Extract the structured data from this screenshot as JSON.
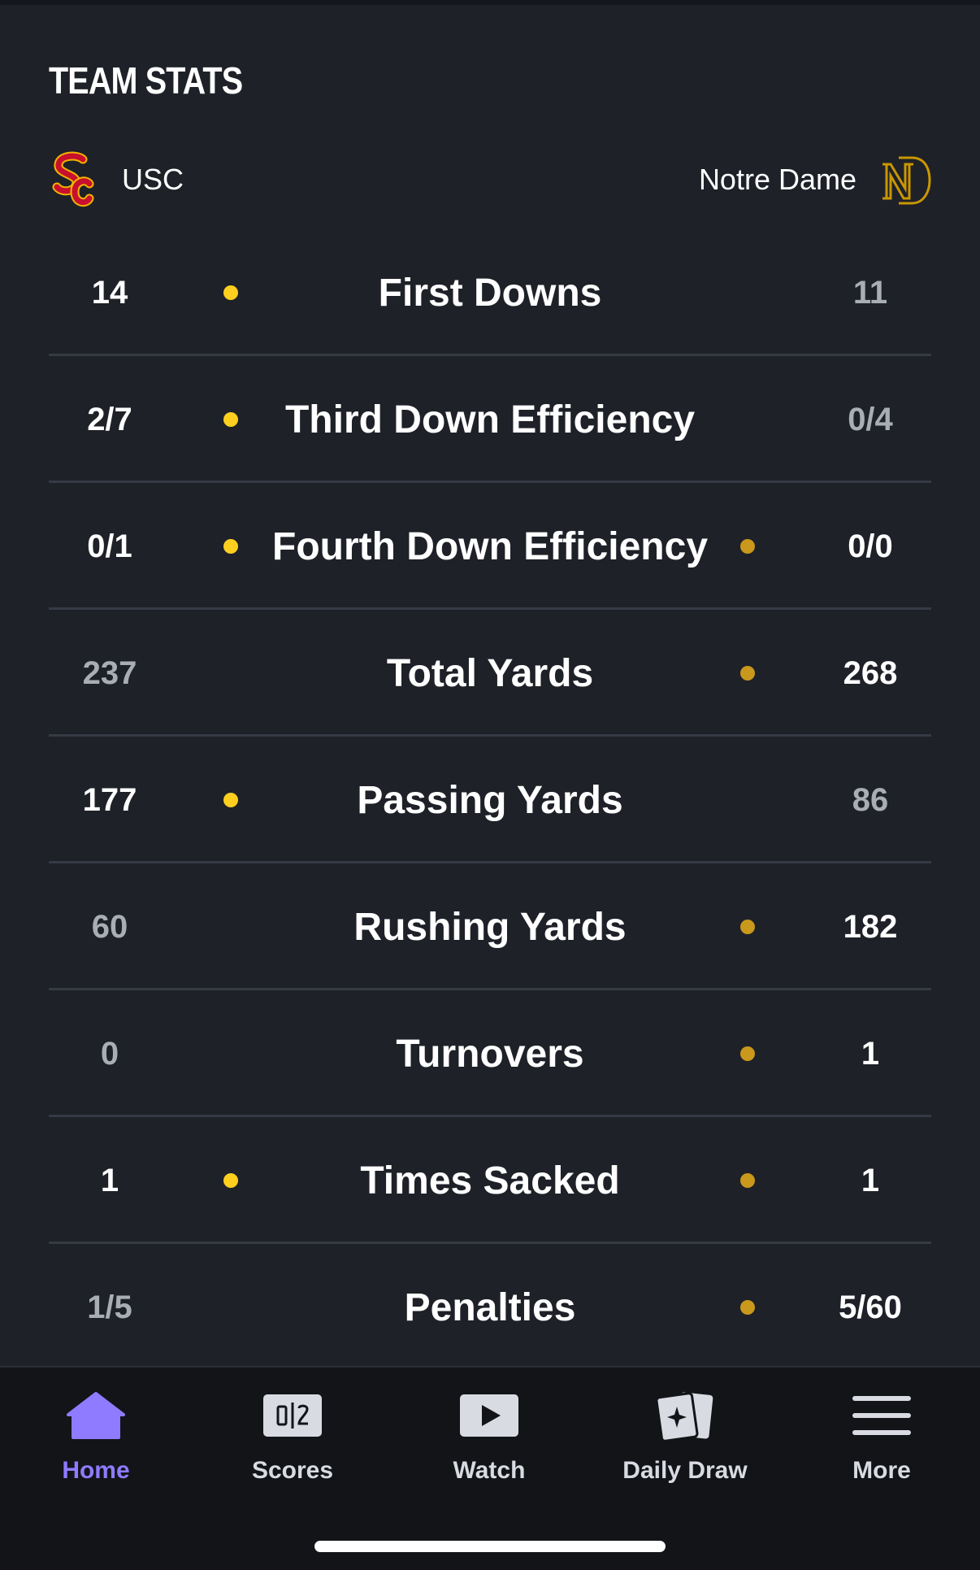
{
  "section": {
    "title": "TEAM STATS"
  },
  "teams": {
    "left": {
      "name": "USC",
      "logo_icon": "usc-sc-logo",
      "color": "#c8102e"
    },
    "right": {
      "name": "Notre Dame",
      "logo_icon": "notre-dame-nd-logo",
      "color": "#c99700"
    }
  },
  "stats": [
    {
      "label": "First Downs",
      "left": "14",
      "right": "11"
    },
    {
      "label": "Third Down Efficiency",
      "left": "2/7",
      "right": "0/4"
    },
    {
      "label": "Fourth Down Efficiency",
      "left": "0/1",
      "right": "0/0"
    },
    {
      "label": "Total Yards",
      "left": "237",
      "right": "268"
    },
    {
      "label": "Passing Yards",
      "left": "177",
      "right": "86"
    },
    {
      "label": "Rushing Yards",
      "left": "60",
      "right": "182"
    },
    {
      "label": "Turnovers",
      "left": "0",
      "right": "1"
    },
    {
      "label": "Times Sacked",
      "left": "1",
      "right": "1"
    },
    {
      "label": "Penalties",
      "left": "1/5",
      "right": "5/60"
    }
  ],
  "nav": {
    "items": [
      {
        "label": "Home",
        "icon": "home-icon",
        "active": true
      },
      {
        "label": "Scores",
        "icon": "scores-icon",
        "active": false
      },
      {
        "label": "Watch",
        "icon": "play-icon",
        "active": false
      },
      {
        "label": "Daily Draw",
        "icon": "daily-draw-icon",
        "active": false
      },
      {
        "label": "More",
        "icon": "menu-icon",
        "active": false
      }
    ]
  },
  "colors": {
    "background": "#1e2128",
    "nav_background": "#121418",
    "accent": "#8e7bff",
    "usc_dot": "#ffcf1f",
    "nd_dot": "#c9981c"
  }
}
